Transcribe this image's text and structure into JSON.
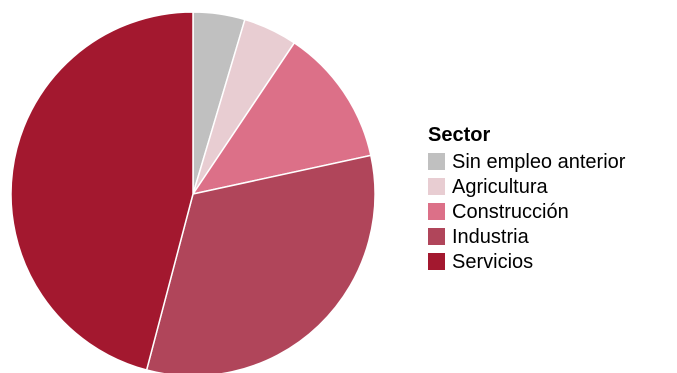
{
  "chart_data": {
    "type": "pie",
    "legend_title": "Sector",
    "legend_position": "right",
    "start_angle": "12 o'clock",
    "direction": "clockwise",
    "series": [
      {
        "name": "Sin empleo anterior",
        "value": 4.6,
        "color": "#c0c0c0"
      },
      {
        "name": "Agricultura",
        "value": 4.8,
        "color": "#e8cdd2"
      },
      {
        "name": "Construcción",
        "value": 12.2,
        "color": "#dc7088"
      },
      {
        "name": "Industria",
        "value": 32.5,
        "color": "#b0455a"
      },
      {
        "name": "Servicios",
        "value": 45.9,
        "color": "#a3182f"
      }
    ]
  }
}
